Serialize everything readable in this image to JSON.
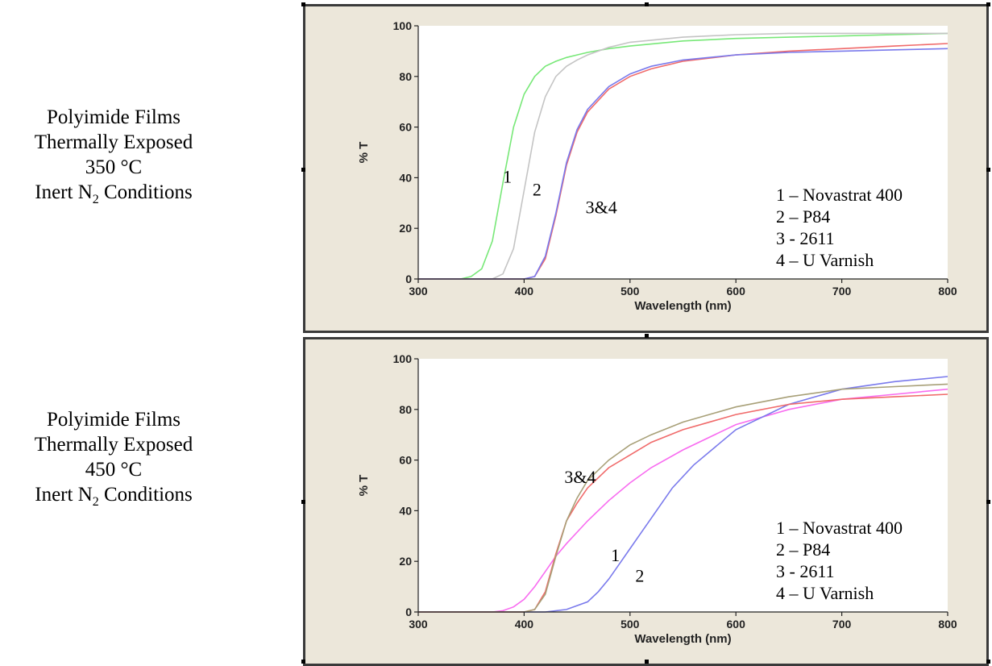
{
  "panels": [
    {
      "side_label": {
        "line1": "Polyimide Films",
        "line2": "Thermally Exposed",
        "line3": "350 °C",
        "line4_prefix": "Inert N",
        "line4_sub": "2",
        "line4_suffix": " Conditions"
      }
    },
    {
      "side_label": {
        "line1": "Polyimide Films",
        "line2": "Thermally Exposed",
        "line3": "450 °C",
        "line4_prefix": "Inert N",
        "line4_sub": "2",
        "line4_suffix": " Conditions"
      }
    }
  ],
  "chart_data": [
    {
      "type": "line",
      "xlabel": "Wavelength (nm)",
      "ylabel": "% T",
      "xlim": [
        300,
        800
      ],
      "ylim": [
        0,
        100
      ],
      "xticks": [
        300,
        400,
        500,
        600,
        700,
        800
      ],
      "yticks": [
        0,
        20,
        40,
        60,
        80,
        100
      ],
      "grid": false,
      "legend_position": "bottom-right",
      "legend": [
        "1 – Novastrat 400",
        "2 – P84",
        "3 - 2611",
        "4 – U Varnish"
      ],
      "annotations": [
        {
          "text": "1",
          "x": 380,
          "y": 38
        },
        {
          "text": "2",
          "x": 408,
          "y": 33
        },
        {
          "text": "3&4",
          "x": 458,
          "y": 26
        }
      ],
      "series": [
        {
          "color": "#78e878",
          "x": [
            300,
            340,
            350,
            360,
            370,
            380,
            390,
            400,
            410,
            420,
            430,
            440,
            450,
            460,
            480,
            500,
            550,
            600,
            650,
            700,
            750,
            800
          ],
          "y": [
            0,
            0,
            1,
            4,
            15,
            38,
            60,
            73,
            80,
            84,
            86,
            87.5,
            88.5,
            89.5,
            91,
            92,
            94,
            95,
            95.5,
            96,
            96.5,
            97
          ]
        },
        {
          "color": "#c4c4c4",
          "x": [
            300,
            370,
            380,
            390,
            400,
            410,
            420,
            430,
            440,
            450,
            460,
            480,
            500,
            550,
            600,
            650,
            700,
            750,
            800
          ],
          "y": [
            0,
            0,
            2,
            12,
            35,
            58,
            72,
            80,
            84,
            86.5,
            88.5,
            91.5,
            93.5,
            95.5,
            96.5,
            97,
            97,
            97,
            97
          ]
        },
        {
          "color": "#f06a6a",
          "x": [
            300,
            400,
            410,
            420,
            430,
            440,
            450,
            460,
            480,
            500,
            520,
            550,
            600,
            650,
            700,
            750,
            800
          ],
          "y": [
            0,
            0,
            1,
            8,
            25,
            45,
            58,
            66,
            75,
            80,
            83,
            86,
            88.5,
            90,
            91,
            92,
            93
          ]
        },
        {
          "color": "#7a7aec",
          "x": [
            300,
            400,
            410,
            420,
            430,
            440,
            450,
            460,
            480,
            500,
            520,
            550,
            600,
            650,
            700,
            750,
            800
          ],
          "y": [
            0,
            0,
            1,
            9,
            26,
            46,
            59,
            67,
            76,
            81,
            84,
            86.5,
            88.5,
            89.5,
            90,
            90.5,
            91
          ]
        }
      ]
    },
    {
      "type": "line",
      "xlabel": "Wavelength (nm)",
      "ylabel": "% T",
      "xlim": [
        300,
        800
      ],
      "ylim": [
        0,
        100
      ],
      "xticks": [
        300,
        400,
        500,
        600,
        700,
        800
      ],
      "yticks": [
        0,
        20,
        40,
        60,
        80,
        100
      ],
      "grid": false,
      "legend_position": "bottom-right",
      "legend": [
        "1 – Novastrat 400",
        "2 – P84",
        "3 - 2611",
        "4 – U Varnish"
      ],
      "annotations": [
        {
          "text": "3&4",
          "x": 438,
          "y": 51
        },
        {
          "text": "1",
          "x": 482,
          "y": 20
        },
        {
          "text": "2",
          "x": 505,
          "y": 12
        }
      ],
      "series": [
        {
          "color": "#f86cf0",
          "x": [
            300,
            370,
            380,
            390,
            400,
            410,
            420,
            430,
            440,
            460,
            480,
            500,
            520,
            550,
            600,
            650,
            700,
            750,
            800
          ],
          "y": [
            0,
            0,
            0.5,
            2,
            5,
            10,
            16,
            22,
            27,
            36,
            44,
            51,
            57,
            64,
            74,
            80,
            84,
            86,
            88
          ]
        },
        {
          "color": "#7a7aec",
          "x": [
            300,
            420,
            440,
            460,
            470,
            480,
            490,
            500,
            510,
            520,
            540,
            560,
            600,
            650,
            700,
            750,
            800
          ],
          "y": [
            0,
            0,
            1,
            4,
            8,
            13,
            19,
            25,
            31,
            37,
            49,
            58,
            72,
            82,
            88,
            91,
            93
          ]
        },
        {
          "color": "#f06a6a",
          "x": [
            300,
            400,
            410,
            420,
            430,
            440,
            450,
            460,
            480,
            500,
            520,
            550,
            600,
            650,
            700,
            750,
            800
          ],
          "y": [
            0,
            0,
            1,
            8,
            23,
            36,
            43,
            49,
            57,
            62,
            67,
            72,
            78,
            82,
            84,
            85,
            86
          ]
        },
        {
          "color": "#a8a078",
          "x": [
            300,
            400,
            410,
            420,
            430,
            440,
            450,
            460,
            480,
            500,
            520,
            550,
            600,
            650,
            700,
            750,
            800
          ],
          "y": [
            0,
            0,
            1,
            7,
            22,
            36,
            45,
            52,
            60,
            66,
            70,
            75,
            81,
            85,
            88,
            89,
            90
          ]
        }
      ]
    }
  ]
}
